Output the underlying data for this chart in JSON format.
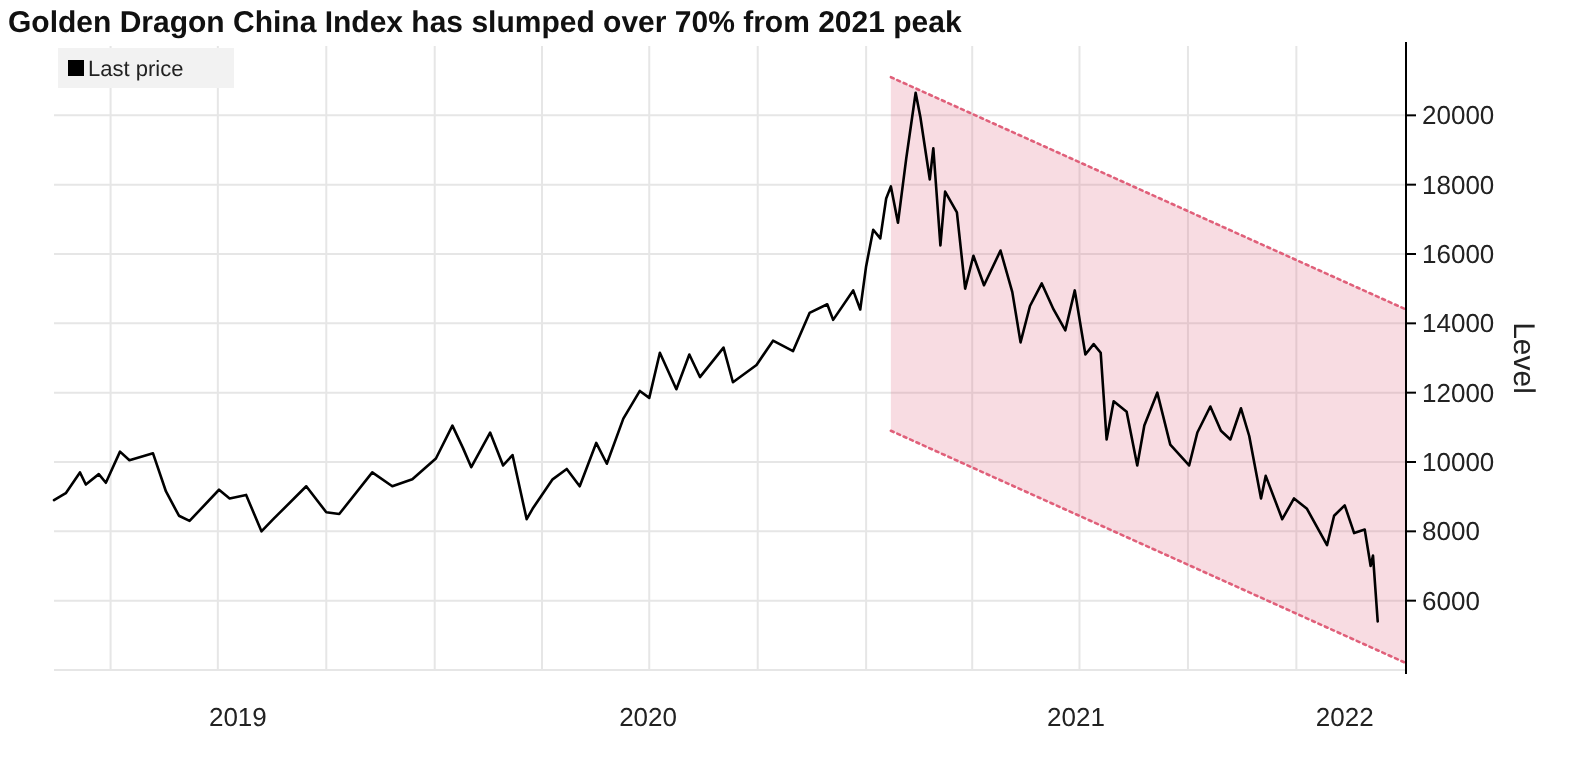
{
  "chart_data": {
    "type": "line",
    "title": "Golden Dragon China Index has slumped over 70% from 2021 peak",
    "ylabel": "Level",
    "xlim": [
      "2019-02-12",
      "2022-04-04"
    ],
    "xticks": [
      {
        "value": "2019-04-01",
        "label": null
      },
      {
        "value": "2019-07-01",
        "label": null
      },
      {
        "value": "2019-10-01",
        "label": null
      },
      {
        "value": "2020-01-01",
        "label": null
      },
      {
        "value": "2020-04-01",
        "label": null
      },
      {
        "value": "2020-07-01",
        "label": null
      },
      {
        "value": "2020-10-01",
        "label": null
      },
      {
        "value": "2021-01-01",
        "label": null
      },
      {
        "value": "2021-04-01",
        "label": null
      },
      {
        "value": "2021-07-01",
        "label": null
      },
      {
        "value": "2021-10-01",
        "label": null
      },
      {
        "value": "2022-01-01",
        "label": null
      },
      {
        "value": "2019-07-18",
        "label": "2019"
      },
      {
        "value": "2020-06-30",
        "label": "2020"
      },
      {
        "value": "2021-06-28",
        "label": "2021"
      },
      {
        "value": "2022-02-11",
        "label": "2022"
      }
    ],
    "ylim": [
      4000,
      22000
    ],
    "yticks": [
      6000,
      8000,
      10000,
      12000,
      14000,
      16000,
      18000,
      20000
    ],
    "grid": true,
    "legend": "top left",
    "series": [
      {
        "name": "Last price",
        "color": "#000000",
        "x": [
          "2019-02-12",
          "2019-02-22",
          "2019-03-06",
          "2019-03-11",
          "2019-03-22",
          "2019-03-28",
          "2019-04-09",
          "2019-04-17",
          "2019-05-07",
          "2019-05-18",
          "2019-05-29",
          "2019-06-07",
          "2019-07-02",
          "2019-07-11",
          "2019-07-25",
          "2019-08-07",
          "2019-08-17",
          "2019-09-14",
          "2019-10-01",
          "2019-10-12",
          "2019-11-09",
          "2019-11-26",
          "2019-12-13",
          "2020-01-02",
          "2020-01-16",
          "2020-01-25",
          "2020-02-01",
          "2020-02-17",
          "2020-02-28",
          "2020-03-07",
          "2020-03-19",
          "2020-03-24",
          "2020-04-10",
          "2020-04-22",
          "2020-05-03",
          "2020-05-17",
          "2020-05-26",
          "2020-06-09",
          "2020-06-23",
          "2020-07-01",
          "2020-07-10",
          "2020-07-24",
          "2020-08-04",
          "2020-08-13",
          "2020-09-02",
          "2020-09-10",
          "2020-09-30",
          "2020-10-14",
          "2020-10-31",
          "2020-11-14",
          "2020-11-29",
          "2020-12-04",
          "2020-12-21",
          "2020-12-27",
          "2021-01-01",
          "2021-01-07",
          "2021-01-13",
          "2021-01-18",
          "2021-01-22",
          "2021-01-28",
          "2021-02-04",
          "2021-02-12",
          "2021-02-16",
          "2021-02-24",
          "2021-02-27",
          "2021-03-05",
          "2021-03-09",
          "2021-03-19",
          "2021-03-26",
          "2021-04-02",
          "2021-04-11",
          "2021-04-25",
          "2021-05-05",
          "2021-05-12",
          "2021-05-20",
          "2021-05-30",
          "2021-06-09",
          "2021-06-19",
          "2021-06-27",
          "2021-07-06",
          "2021-07-13",
          "2021-07-19",
          "2021-07-24",
          "2021-07-30",
          "2021-08-10",
          "2021-08-19",
          "2021-08-25",
          "2021-09-05",
          "2021-09-16",
          "2021-10-02",
          "2021-10-09",
          "2021-10-20",
          "2021-10-29",
          "2021-11-06",
          "2021-11-15",
          "2021-11-22",
          "2021-12-02",
          "2021-12-06",
          "2021-12-20",
          "2021-12-30",
          "2022-01-10",
          "2022-01-27",
          "2022-02-02",
          "2022-02-11",
          "2022-02-19",
          "2022-02-28",
          "2022-03-05",
          "2022-03-07",
          "2022-03-11"
        ],
        "values": [
          8900,
          9100,
          9700,
          9350,
          9650,
          9400,
          10300,
          10050,
          10250,
          9150,
          8450,
          8300,
          9200,
          8950,
          9050,
          8000,
          8350,
          9300,
          8550,
          8500,
          9700,
          9300,
          9500,
          10100,
          11050,
          10400,
          9850,
          10850,
          9900,
          10200,
          8350,
          8650,
          9500,
          9800,
          9300,
          10550,
          9950,
          11250,
          12050,
          11850,
          13150,
          12100,
          13100,
          12450,
          13300,
          12300,
          12800,
          13500,
          13200,
          14300,
          14550,
          14100,
          14950,
          14400,
          15650,
          16700,
          16450,
          17600,
          17950,
          16900,
          18750,
          20650,
          19950,
          18150,
          19050,
          16250,
          17800,
          17200,
          15000,
          15950,
          15100,
          16100,
          14900,
          13450,
          14500,
          15150,
          14400,
          13800,
          14950,
          13100,
          13400,
          13150,
          10650,
          11750,
          11450,
          9900,
          11050,
          12000,
          10500,
          9900,
          10850,
          11600,
          10900,
          10650,
          11550,
          10750,
          8950,
          9600,
          8350,
          8950,
          8650,
          7600,
          8450,
          8750,
          7950,
          8050,
          7000,
          7300,
          5400
        ]
      },
      {
        "color": "#e0607a",
        "line_style": "dotted",
        "x": [
          "2021-01-22",
          "2022-04-04"
        ],
        "values": [
          21100,
          14400
        ]
      },
      {
        "color": "#e0607a",
        "line_style": "dotted",
        "x": [
          "2021-01-22",
          "2022-04-04"
        ],
        "values": [
          10900,
          4200
        ]
      }
    ]
  }
}
